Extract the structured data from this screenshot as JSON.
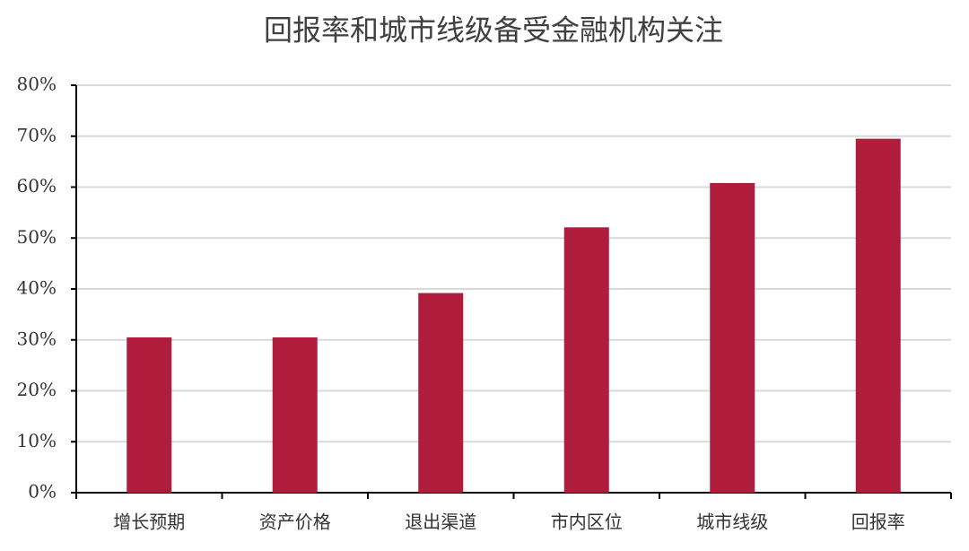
{
  "chart_data": {
    "type": "bar",
    "title": "回报率和城市线级备受金融机构关注",
    "categories": [
      "增长预期",
      "资产价格",
      "退出渠道",
      "市内区位",
      "城市线级",
      "回报率"
    ],
    "values": [
      30.5,
      30.5,
      39.2,
      52.1,
      60.8,
      69.5
    ],
    "color": "#b01c3c",
    "ylim": [
      0,
      80
    ],
    "yticks": [
      {
        "value": 0,
        "label": "0%"
      },
      {
        "value": 10,
        "label": "10%"
      },
      {
        "value": 20,
        "label": "20%"
      },
      {
        "value": 30,
        "label": "30%"
      },
      {
        "value": 40,
        "label": "40%"
      },
      {
        "value": 50,
        "label": "50%"
      },
      {
        "value": 60,
        "label": "60%"
      },
      {
        "value": 70,
        "label": "70%"
      },
      {
        "value": 80,
        "label": "80%"
      }
    ],
    "grid": true
  }
}
